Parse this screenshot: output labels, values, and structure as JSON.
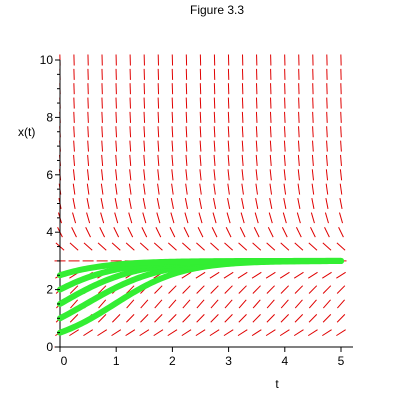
{
  "chart_data": {
    "type": "line",
    "title": "Figure 3.3",
    "xlabel": "t",
    "ylabel": "x(t)",
    "xlim": [
      0,
      5
    ],
    "ylim": [
      0,
      10
    ],
    "x_ticks": [
      0,
      1,
      2,
      3,
      4,
      5
    ],
    "y_ticks": [
      0,
      2,
      4,
      6,
      8,
      10
    ],
    "grid": false,
    "equilibrium": 3,
    "direction_field": {
      "t_start": 0,
      "t_step": 0.25,
      "t_count": 21,
      "x_start": 0,
      "x_step": 0.5,
      "x_count": 21,
      "color": "#e00000"
    },
    "series": [
      {
        "x0": 0.5,
        "color": "#33ee33"
      },
      {
        "x0": 1.0,
        "color": "#33ee33"
      },
      {
        "x0": 1.5,
        "color": "#33ee33"
      },
      {
        "x0": 2.0,
        "color": "#33ee33"
      },
      {
        "x0": 2.5,
        "color": "#33ee33"
      }
    ]
  }
}
